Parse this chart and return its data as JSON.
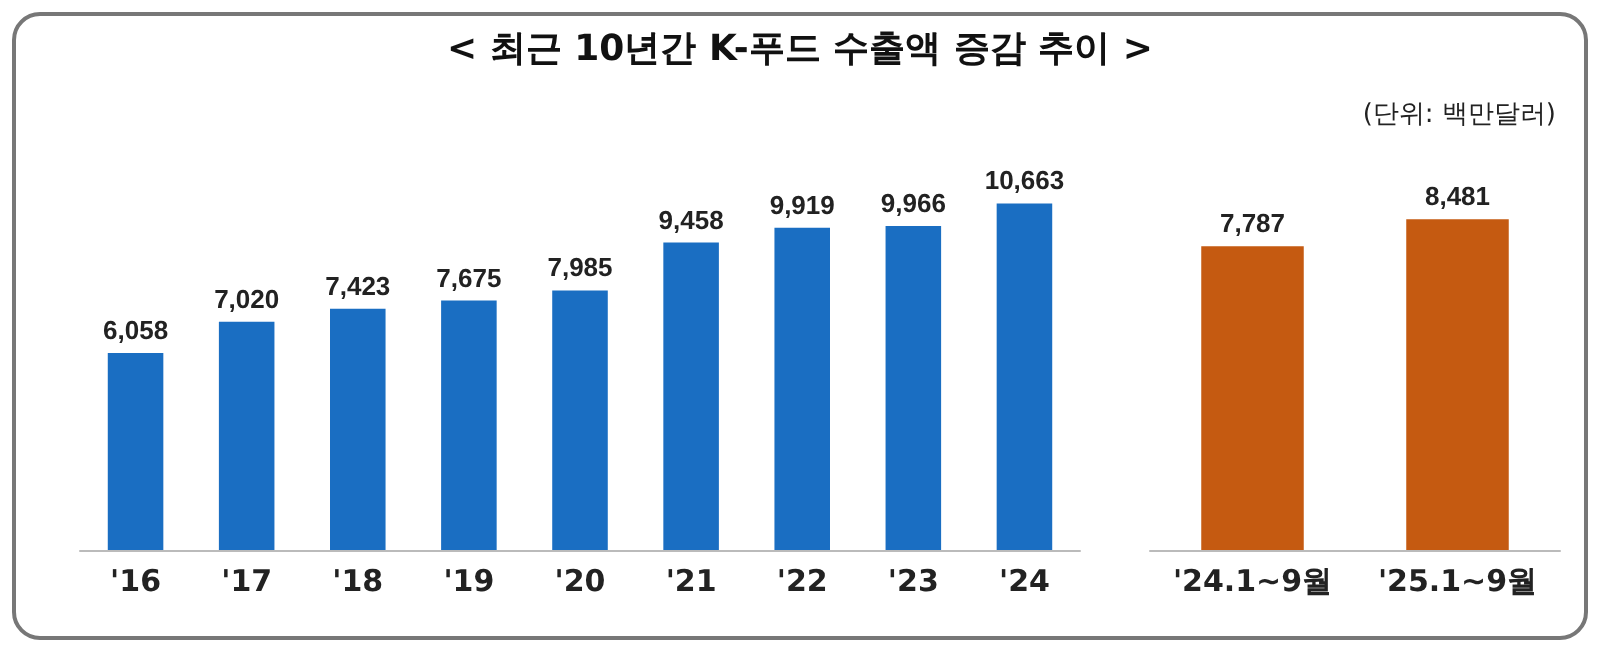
{
  "chart_data": [
    {
      "type": "bar",
      "title": "< 최근 10년간 K-푸드 수출액 증감 추이 >",
      "categories": [
        "'16",
        "'17",
        "'18",
        "'19",
        "'20",
        "'21",
        "'22",
        "'23",
        "'24"
      ],
      "values": [
        6058,
        7020,
        7423,
        7675,
        7985,
        9458,
        9919,
        9966,
        10663
      ],
      "value_labels": [
        "6,058",
        "7,020",
        "7,423",
        "7,675",
        "7,985",
        "9,458",
        "9,919",
        "9,966",
        "10,663"
      ],
      "color": "#1a6ec2"
    },
    {
      "type": "bar",
      "annotations": [
        "(단위: 백만달러)"
      ],
      "categories": [
        "'24.1~9월",
        "'25.1~9월"
      ],
      "values": [
        7787,
        8481
      ],
      "value_labels": [
        "7,787",
        "8,481"
      ],
      "color": "#c55a11"
    }
  ]
}
